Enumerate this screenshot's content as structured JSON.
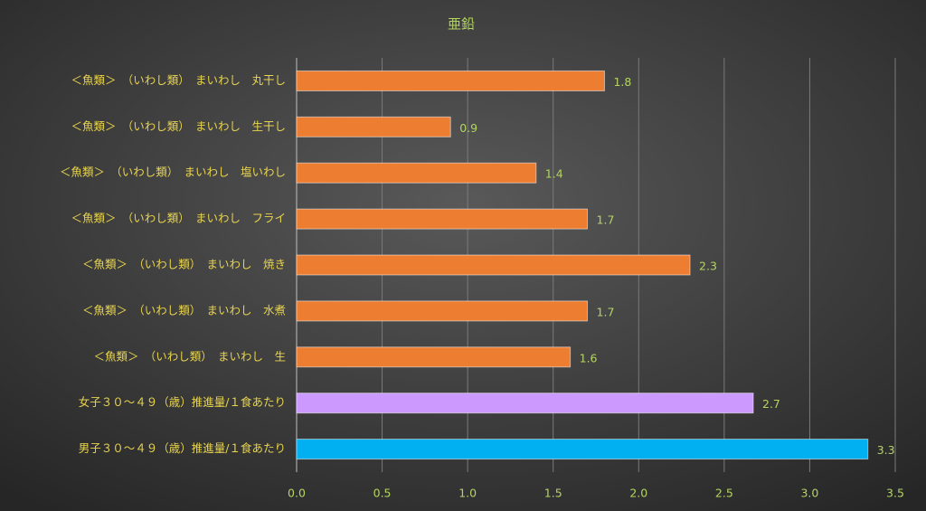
{
  "chart_data": {
    "type": "hbar",
    "title": "亜鉛",
    "categories": [
      "＜魚類＞　（いわし類）　まいわし　丸干し",
      "＜魚類＞　（いわし類）　まいわし　生干し",
      "＜魚類＞　（いわし類）　まいわし　塩いわし",
      "＜魚類＞　（いわし類）　まいわし　フライ",
      "＜魚類＞　（いわし類）　まいわし　焼き",
      "＜魚類＞　（いわし類）　まいわし　水煮",
      "＜魚類＞　（いわし類）　まいわし　生",
      "女子３０～４９（歳）推進量/１食あたり",
      "男子３０～４９（歳）推進量/１食あたり"
    ],
    "values": [
      1.8,
      0.9,
      1.4,
      1.7,
      2.3,
      1.7,
      1.6,
      2.67,
      3.34
    ],
    "value_labels": [
      "1.8",
      "0.9",
      "1.4",
      "1.7",
      "2.3",
      "1.7",
      "1.6",
      "2.7",
      "3.3"
    ],
    "colors": [
      "#ed7d31",
      "#ed7d31",
      "#ed7d31",
      "#ed7d31",
      "#ed7d31",
      "#ed7d31",
      "#ed7d31",
      "#cc99ff",
      "#00b0f0"
    ],
    "xlim": [
      0,
      3.5
    ],
    "xticks": [
      {
        "value": 0,
        "label": "0.0"
      },
      {
        "value": 0.5,
        "label": "0.5"
      },
      {
        "value": 1,
        "label": "1.0"
      },
      {
        "value": 1.5,
        "label": "1.5"
      },
      {
        "value": 2,
        "label": "2.0"
      },
      {
        "value": 2.5,
        "label": "2.5"
      },
      {
        "value": 3,
        "label": "3.0"
      },
      {
        "value": 3.5,
        "label": "3.5"
      }
    ],
    "grid": true
  }
}
